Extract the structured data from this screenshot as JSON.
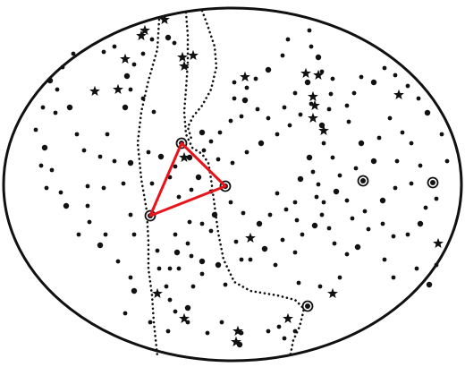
{
  "colors": {
    "background": "#ffffff",
    "ink": "#111111",
    "triangle": "#e8141b"
  },
  "icons": {
    "star": "five-point-star-icon",
    "dot": "filled-circle-icon",
    "ringed_star": "ringed-circle-icon"
  },
  "chart_data": {
    "type": "sky-map",
    "elements": [
      "oval-boundary",
      "milky-way-dotted-band",
      "stars",
      "red-triangle"
    ]
  }
}
